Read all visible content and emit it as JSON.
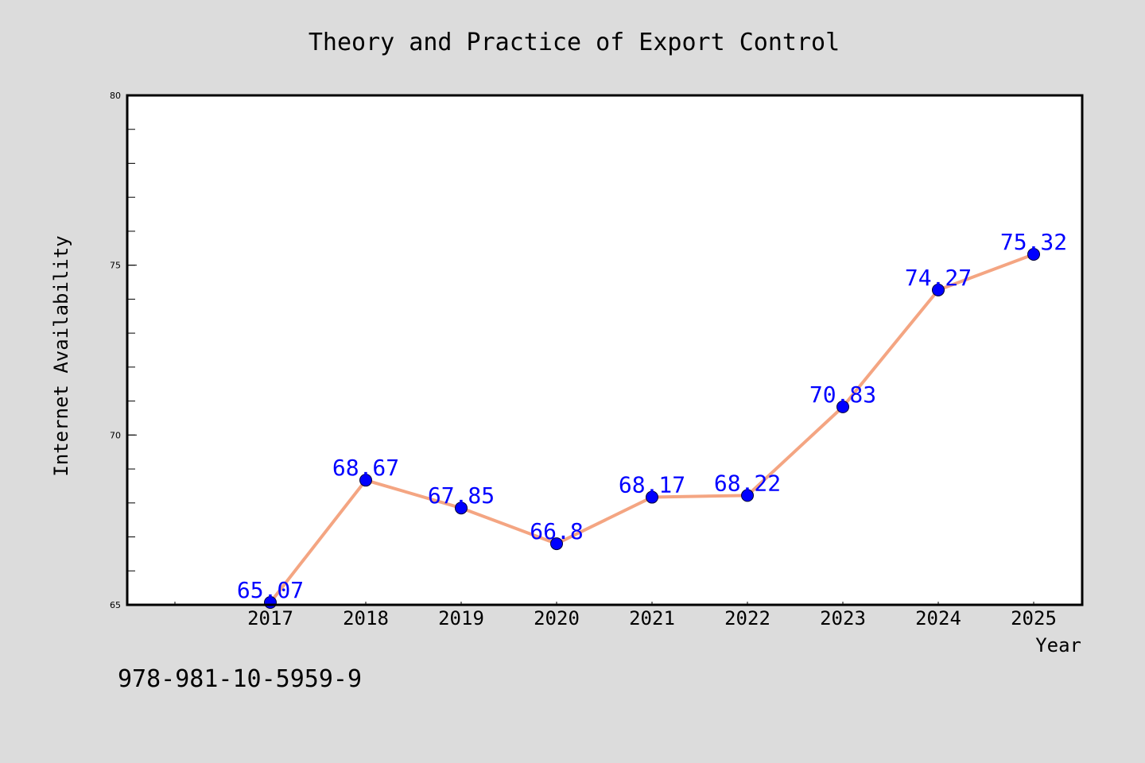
{
  "chart_data": {
    "type": "line",
    "title": "Theory and Practice of Export Control",
    "xlabel": "Year",
    "ylabel": "Internet Availability",
    "categories": [
      "2017",
      "2018",
      "2019",
      "2020",
      "2021",
      "2022",
      "2023",
      "2024",
      "2025"
    ],
    "values": [
      65.07,
      68.67,
      67.85,
      66.8,
      68.17,
      68.22,
      70.83,
      74.27,
      75.32
    ],
    "value_labels": [
      "65.07",
      "68.67",
      "67.85",
      "66.8",
      "68.17",
      "68.22",
      "70.83",
      "74.27",
      "75.32"
    ],
    "ylim": [
      65,
      80
    ],
    "y_ticks": [
      "65",
      "70",
      "75",
      "80"
    ],
    "grid": false,
    "line_color": "#f4a582",
    "marker_color": "#0000ff",
    "label_color": "#0000ff"
  },
  "footer": {
    "isbn": "978-981-10-5959-9"
  }
}
